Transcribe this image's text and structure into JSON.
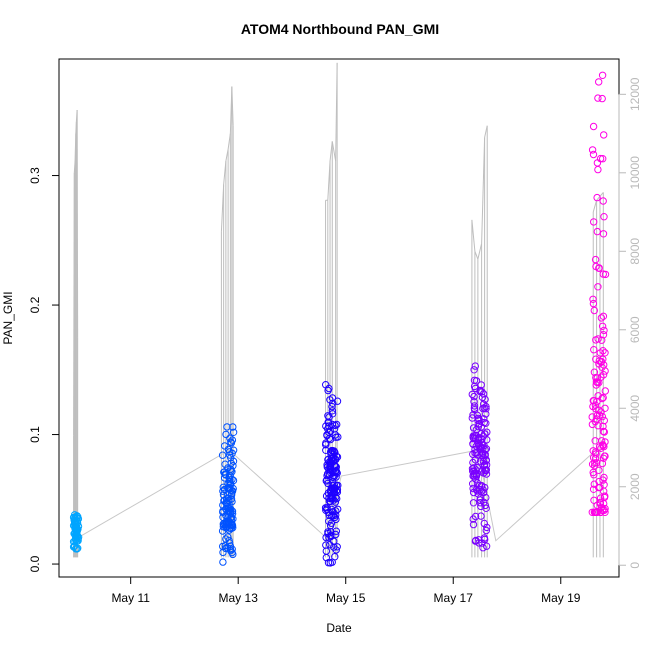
{
  "chart_data": {
    "type": "scatter",
    "title": "ATOM4 Northbound PAN_GMI",
    "xlabel": "Date",
    "ylabel": "PAN_GMI",
    "xlim": [
      "2024-05-09T16:00",
      "2024-05-20T02:00"
    ],
    "ylim": [
      -0.01,
      0.39
    ],
    "x_ticks": [
      {
        "label": "May 11",
        "t": "2024-05-11T00:00"
      },
      {
        "label": "May 13",
        "t": "2024-05-13T00:00"
      },
      {
        "label": "May 15",
        "t": "2024-05-15T00:00"
      },
      {
        "label": "May 17",
        "t": "2024-05-17T00:00"
      },
      {
        "label": "May 19",
        "t": "2024-05-19T00:00"
      }
    ],
    "y_ticks": [
      "0.0",
      "0.1",
      "0.2",
      "0.3"
    ],
    "secondary_axis": {
      "ylim": [
        -300,
        12900
      ],
      "ticks": [
        "0",
        "2000",
        "4000",
        "6000",
        "8000",
        "10000",
        "12000"
      ],
      "line_color": "#bebebe"
    },
    "legend": "none",
    "grid": false,
    "trend_line": [
      {
        "t": "2024-05-10T00:10",
        "y": 0.02
      },
      {
        "t": "2024-05-12T20:00",
        "y": 0.088
      },
      {
        "t": "2024-05-14T15:30",
        "y": 0.02
      },
      {
        "t": "2024-05-14T22:00",
        "y": 0.068
      },
      {
        "t": "2024-05-17T11:00",
        "y": 0.088
      },
      {
        "t": "2024-05-17T19:00",
        "y": 0.018
      },
      {
        "t": "2024-05-19T17:00",
        "y": 0.09
      }
    ],
    "clusters": [
      {
        "color": "#00a5ff",
        "start": "2024-05-09T22:30",
        "end": "2024-05-10T00:45",
        "y_min": 0.0,
        "y_max": 0.038,
        "y_center": 0.025,
        "n": 60
      },
      {
        "color": "#0052ff",
        "start": "2024-05-12T17:00",
        "end": "2024-05-12T22:00",
        "y_min": 0.0,
        "y_max": 0.11,
        "y_center": 0.05,
        "n": 130
      },
      {
        "color": "#1e00ff",
        "start": "2024-05-14T15:00",
        "end": "2024-05-14T20:30",
        "y_min": 0.0,
        "y_max": 0.14,
        "y_center": 0.065,
        "n": 160
      },
      {
        "color": "#7a00ff",
        "start": "2024-05-17T08:30",
        "end": "2024-05-17T15:00",
        "y_min": 0.005,
        "y_max": 0.155,
        "y_center": 0.085,
        "n": 150
      },
      {
        "color": "#ff00e6",
        "start": "2024-05-19T14:00",
        "end": "2024-05-19T20:00",
        "y_min": 0.04,
        "y_max": 0.38,
        "y_center": 0.095,
        "n": 140
      }
    ],
    "secondary_spikes": [
      {
        "t": "2024-05-09T22:30",
        "v": 3300
      },
      {
        "t": "2024-05-09T22:50",
        "v": 10000
      },
      {
        "t": "2024-05-09T23:10",
        "v": 10300
      },
      {
        "t": "2024-05-09T23:30",
        "v": 11000
      },
      {
        "t": "2024-05-09T23:45",
        "v": 11300
      },
      {
        "t": "2024-05-10T00:05",
        "v": 11600
      },
      {
        "t": "2024-05-10T00:20",
        "v": 5800
      },
      {
        "t": "2024-05-12T16:30",
        "v": 8500
      },
      {
        "t": "2024-05-12T17:30",
        "v": 9700
      },
      {
        "t": "2024-05-12T18:30",
        "v": 10300
      },
      {
        "t": "2024-05-12T19:30",
        "v": 10600
      },
      {
        "t": "2024-05-12T20:30",
        "v": 11000
      },
      {
        "t": "2024-05-12T21:10",
        "v": 12200
      },
      {
        "t": "2024-05-12T21:45",
        "v": 11200
      },
      {
        "t": "2024-05-14T15:00",
        "v": 9300
      },
      {
        "t": "2024-05-14T16:00",
        "v": 9300
      },
      {
        "t": "2024-05-14T17:00",
        "v": 10300
      },
      {
        "t": "2024-05-14T18:00",
        "v": 10800
      },
      {
        "t": "2024-05-14T19:30",
        "v": 10300
      },
      {
        "t": "2024-05-14T20:10",
        "v": 12800
      },
      {
        "t": "2024-05-17T08:20",
        "v": 8800
      },
      {
        "t": "2024-05-17T09:40",
        "v": 8000
      },
      {
        "t": "2024-05-17T11:00",
        "v": 7800
      },
      {
        "t": "2024-05-17T12:40",
        "v": 8200
      },
      {
        "t": "2024-05-17T14:00",
        "v": 10900
      },
      {
        "t": "2024-05-17T15:10",
        "v": 11200
      },
      {
        "t": "2024-05-19T14:30",
        "v": 9000
      },
      {
        "t": "2024-05-19T16:00",
        "v": 9300
      },
      {
        "t": "2024-05-19T17:30",
        "v": 9400
      },
      {
        "t": "2024-05-19T19:00",
        "v": 9500
      }
    ]
  }
}
